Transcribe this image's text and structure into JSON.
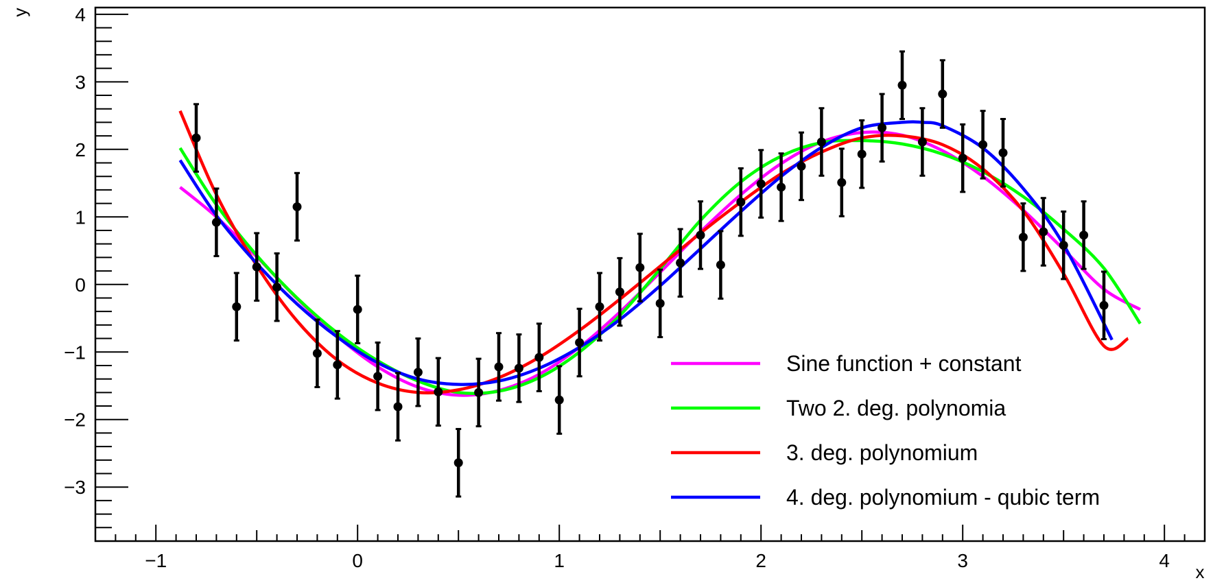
{
  "chart_data": {
    "type": "scatter",
    "title": "",
    "xlabel": "x",
    "ylabel": "y",
    "xlim": [
      -1.3,
      4.2
    ],
    "ylim": [
      -3.8,
      4.1
    ],
    "x_ticks": [
      -1,
      0,
      1,
      2,
      3,
      4
    ],
    "x_tick_labels": [
      "−1",
      "0",
      "1",
      "2",
      "3",
      "4"
    ],
    "y_ticks": [
      -3,
      -2,
      -1,
      0,
      1,
      2,
      3,
      4
    ],
    "y_tick_labels": [
      "−3",
      "−2",
      "−1",
      "0",
      "1",
      "2",
      "3",
      "4"
    ],
    "grid": false,
    "legend_position": "bottom-right",
    "points": {
      "name": "data",
      "color": "#000000",
      "error": 0.5,
      "x": [
        -0.8,
        -0.7,
        -0.6,
        -0.5,
        -0.4,
        -0.3,
        -0.2,
        -0.1,
        0.0,
        0.1,
        0.2,
        0.3,
        0.4,
        0.5,
        0.6,
        0.7,
        0.8,
        0.9,
        1.0,
        1.1,
        1.2,
        1.3,
        1.4,
        1.5,
        1.6,
        1.7,
        1.8,
        1.9,
        2.0,
        2.1,
        2.2,
        2.3,
        2.4,
        2.5,
        2.6,
        2.7,
        2.8,
        2.9,
        3.0,
        3.1,
        3.2,
        3.3,
        3.4,
        3.5,
        3.6,
        3.7
      ],
      "y": [
        2.17,
        0.92,
        -0.33,
        0.26,
        -0.04,
        1.15,
        -1.02,
        -1.19,
        -0.37,
        -1.36,
        -1.81,
        -1.3,
        -1.59,
        -2.64,
        -1.6,
        -1.22,
        -1.24,
        -1.08,
        -1.71,
        -0.86,
        -0.33,
        -0.11,
        0.25,
        -0.28,
        0.32,
        0.73,
        0.29,
        1.22,
        1.49,
        1.44,
        1.75,
        2.11,
        1.51,
        1.93,
        2.32,
        2.95,
        2.11,
        2.82,
        1.87,
        2.07,
        1.95,
        0.7,
        0.78,
        0.58,
        0.73,
        -0.31
      ]
    },
    "series": [
      {
        "name": "Sine function + constant",
        "color": "#ff00ff",
        "x": [
          -0.88,
          -0.7,
          -0.5,
          -0.3,
          -0.1,
          0.1,
          0.3,
          0.5,
          0.7,
          0.9,
          1.1,
          1.3,
          1.5,
          1.7,
          1.9,
          2.1,
          2.3,
          2.5,
          2.7,
          2.9,
          3.1,
          3.3,
          3.5,
          3.7,
          3.88
        ],
        "y": [
          1.44,
          1.0,
          0.41,
          -0.21,
          -0.77,
          -1.22,
          -1.52,
          -1.64,
          -1.57,
          -1.33,
          -0.93,
          -0.41,
          0.18,
          0.78,
          1.33,
          1.79,
          2.11,
          2.25,
          2.21,
          1.98,
          1.6,
          1.1,
          0.52,
          -0.07,
          -0.37
        ]
      },
      {
        "name": "Two 2. deg. polynomia",
        "color": "#00ff00",
        "x": [
          -0.88,
          -0.7,
          -0.5,
          -0.3,
          -0.1,
          0.1,
          0.3,
          0.5,
          0.7,
          0.9,
          1.1,
          1.3,
          1.5,
          1.7,
          1.9,
          2.1,
          2.3,
          2.5,
          2.7,
          2.9,
          3.1,
          3.3,
          3.5,
          3.7,
          3.88
        ],
        "y": [
          2.02,
          1.18,
          0.43,
          -0.2,
          -0.72,
          -1.13,
          -1.43,
          -1.6,
          -1.58,
          -1.38,
          -1.0,
          -0.46,
          0.23,
          0.95,
          1.52,
          1.9,
          2.1,
          2.13,
          2.08,
          1.93,
          1.67,
          1.3,
          0.82,
          0.24,
          -0.58
        ]
      },
      {
        "name": "3. deg. polynomium",
        "color": "#ff0000",
        "x": [
          -0.88,
          -0.7,
          -0.5,
          -0.3,
          -0.1,
          0.1,
          0.3,
          0.5,
          0.7,
          0.9,
          1.1,
          1.3,
          1.5,
          1.7,
          1.9,
          2.1,
          2.3,
          2.5,
          2.7,
          2.9,
          3.1,
          3.3,
          3.5,
          3.7,
          3.82
        ],
        "y": [
          2.57,
          1.33,
          0.28,
          -0.54,
          -1.12,
          -1.46,
          -1.6,
          -1.56,
          -1.38,
          -1.08,
          -0.68,
          -0.22,
          0.27,
          0.76,
          1.22,
          1.64,
          1.96,
          2.17,
          2.2,
          2.07,
          1.71,
          1.09,
          0.16,
          -0.91,
          -0.8
        ]
      },
      {
        "name": "4. deg. polynomium - qubic term",
        "color": "#0000ff",
        "x": [
          -0.88,
          -0.7,
          -0.5,
          -0.3,
          -0.1,
          0.1,
          0.3,
          0.5,
          0.7,
          0.9,
          1.1,
          1.3,
          1.5,
          1.7,
          1.9,
          2.1,
          2.3,
          2.5,
          2.7,
          2.8,
          2.9,
          3.1,
          3.3,
          3.5,
          3.74
        ],
        "y": [
          1.84,
          1.02,
          0.31,
          -0.29,
          -0.78,
          -1.16,
          -1.4,
          -1.48,
          -1.43,
          -1.24,
          -0.93,
          -0.52,
          -0.02,
          0.53,
          1.08,
          1.6,
          2.03,
          2.32,
          2.4,
          2.4,
          2.35,
          2.02,
          1.42,
          0.59,
          -0.82
        ]
      }
    ]
  }
}
